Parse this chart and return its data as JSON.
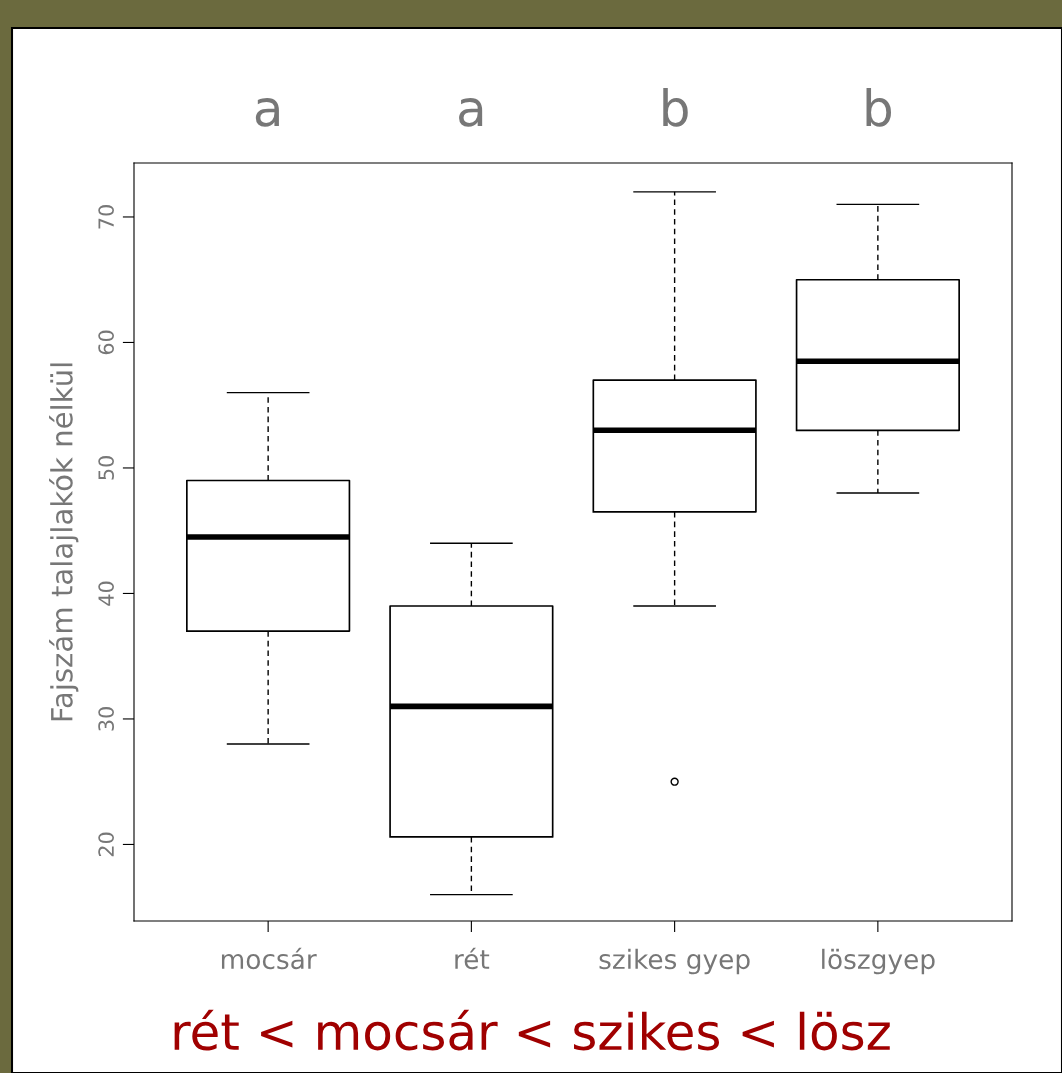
{
  "chart_data": {
    "type": "box",
    "ylabel": "Fajszám talajlakók nélkül",
    "categories": [
      "mocsár",
      "rét",
      "szikes gyep",
      "löszgyep"
    ],
    "boxes": [
      {
        "low": 28,
        "q1": 37,
        "median": 44.5,
        "q3": 49,
        "high": 56
      },
      {
        "low": 16,
        "q1": 20.6,
        "median": 31,
        "q3": 39,
        "high": 44
      },
      {
        "low": 39,
        "q1": 46.5,
        "median": 53,
        "q3": 57,
        "high": 72,
        "outliers": [
          25
        ]
      },
      {
        "low": 48,
        "q1": 53,
        "median": 58.5,
        "q3": 65,
        "high": 71
      }
    ],
    "ylim": [
      13.9,
      74.3
    ],
    "yticks": [
      20,
      30,
      40,
      50,
      60,
      70
    ],
    "grid": false,
    "annotations": [
      "a",
      "a",
      "b",
      "b",
      "rét < mocsár < szikes < lösz"
    ]
  }
}
